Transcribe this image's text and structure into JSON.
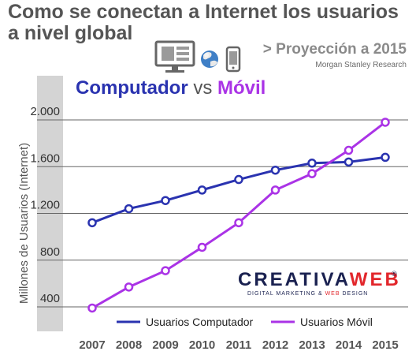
{
  "header": {
    "title": "Como se conectan a Internet los usuarios a nivel global",
    "projection": "> Proyección a 2015",
    "source": "Morgan Stanley Research"
  },
  "icons": [
    "monitor-icon",
    "globe-icon",
    "smartphone-icon"
  ],
  "colors": {
    "computer": "#2a33b0",
    "mobile": "#aa33e6",
    "title": "#555555",
    "axis_band": "#d4d4d4",
    "logo_dark": "#1a2150",
    "logo_accent": "#e2262b"
  },
  "logo": {
    "part1": "CREATIVA",
    "part2": "WEB",
    "registered": "®",
    "tagline_part1": "DIGITAL MARKETING & ",
    "tagline_part2": "WEB",
    "tagline_part3": " DESIGN"
  },
  "chart_data": {
    "type": "line",
    "title": "Computador vs Móvil",
    "title_parts": [
      "Computador",
      " vs ",
      "Móvil"
    ],
    "ylabel": "Millones de Usuarios (Internet)",
    "xlabel": "",
    "x": [
      2007,
      2008,
      2009,
      2010,
      2011,
      2012,
      2013,
      2014,
      2015
    ],
    "ylim": [
      300,
      2100
    ],
    "yticks": [
      400,
      800,
      1200,
      1600,
      2000
    ],
    "ytick_labels": [
      "400",
      "800",
      "1.200",
      "1.600",
      "2.000"
    ],
    "grid": true,
    "legend_position": "bottom",
    "series": [
      {
        "name": "Usuarios Computador",
        "values": [
          1120,
          1240,
          1310,
          1400,
          1490,
          1570,
          1630,
          1640,
          1680
        ]
      },
      {
        "name": "Usuarios Móvil",
        "values": [
          390,
          570,
          710,
          910,
          1120,
          1400,
          1540,
          1740,
          1980
        ]
      }
    ]
  }
}
